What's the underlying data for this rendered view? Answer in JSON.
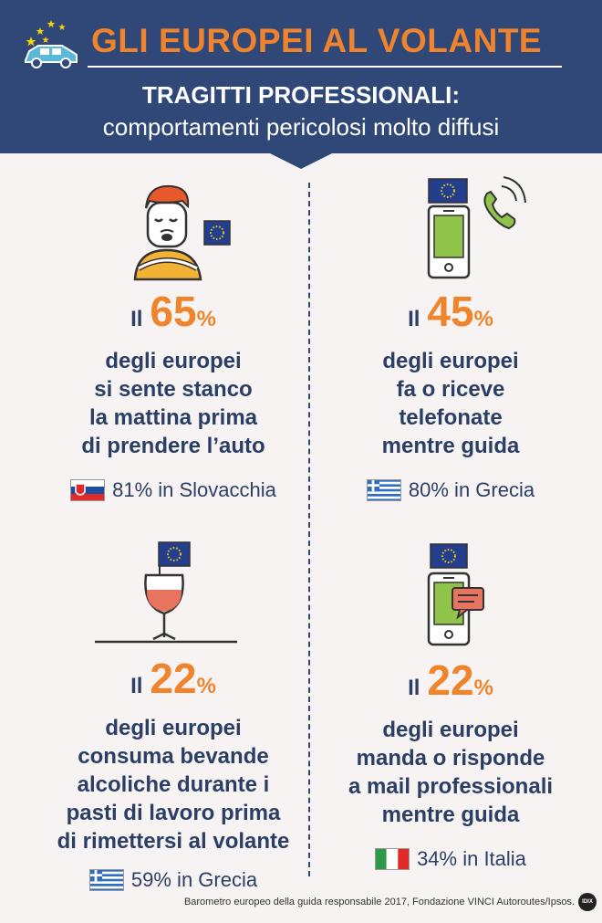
{
  "header": {
    "title": "GLI EUROPEI AL VOLANTE",
    "subtitle_line1": "TRAGITTI PROFESSIONALI:",
    "subtitle_line2": "comportamenti pericolosi molto diffusi"
  },
  "panels": [
    {
      "prefix": "Il",
      "value": "65",
      "unit": "%",
      "description": [
        "degli europei",
        "si sente stanco",
        "la mattina prima",
        "di prendere l’auto"
      ],
      "country_text": "81% in Slovacchia",
      "icon": "tired-driver-icon"
    },
    {
      "prefix": "Il",
      "value": "45",
      "unit": "%",
      "description": [
        "degli europei",
        "fa o riceve",
        "telefonate",
        "mentre guida"
      ],
      "country_text": "80% in Grecia",
      "icon": "phone-call-icon"
    },
    {
      "prefix": "Il",
      "value": "22",
      "unit": "%",
      "description": [
        "degli europei",
        "consuma bevande",
        "alcoliche durante i",
        "pasti di lavoro prima",
        "di rimettersi al volante"
      ],
      "country_text": "59% in Grecia",
      "icon": "wine-glass-icon"
    },
    {
      "prefix": "Il",
      "value": "22",
      "unit": "%",
      "description": [
        "degli europei",
        "manda o risponde",
        "a mail professionali",
        "mentre guida"
      ],
      "country_text": "34% in Italia",
      "icon": "phone-message-icon"
    }
  ],
  "footer": {
    "source": "Barometro europeo della guida responsabile 2017, Fondazione VINCI Autoroutes/Ipsos.",
    "logo_text": "IDIX"
  },
  "colors": {
    "navy": "#2f4878",
    "orange": "#f0842c",
    "background": "#f6f3f2",
    "eu_blue": "#243e8e",
    "eu_star": "#f5d40a"
  }
}
